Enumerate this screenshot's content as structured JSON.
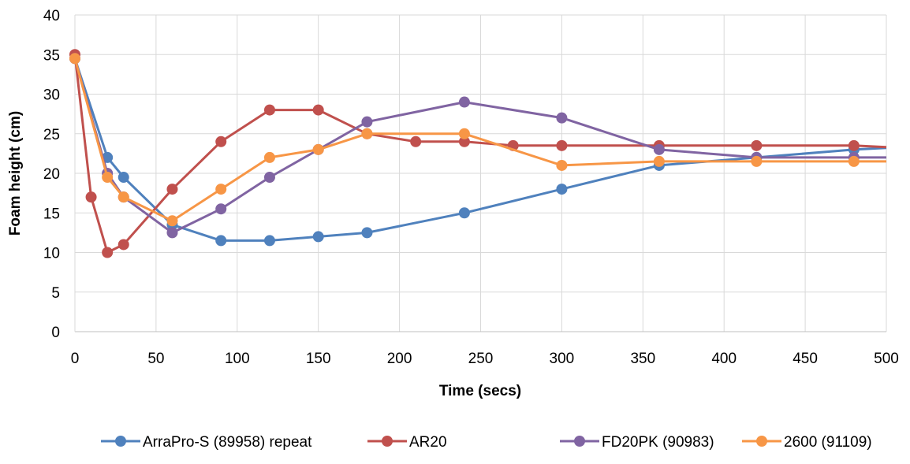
{
  "chart_data": {
    "type": "line",
    "title": "",
    "xlabel": "Time (secs)",
    "ylabel": "Foam height (cm)",
    "xlim": [
      0,
      500
    ],
    "ylim": [
      0,
      40
    ],
    "xticks": [
      0,
      50,
      100,
      150,
      200,
      250,
      300,
      350,
      400,
      450,
      500
    ],
    "yticks": [
      0,
      5,
      10,
      15,
      20,
      25,
      30,
      35,
      40
    ],
    "grid": true,
    "legend": "bottom",
    "series": [
      {
        "name": "ArraPro-S (89958) repeat",
        "color": "#4f81bd",
        "points": [
          [
            0,
            34.5
          ],
          [
            20,
            22
          ],
          [
            30,
            19.5
          ],
          [
            60,
            13.5
          ],
          [
            90,
            11.5
          ],
          [
            120,
            11.5
          ],
          [
            150,
            12
          ],
          [
            180,
            12.5
          ],
          [
            240,
            15
          ],
          [
            300,
            18
          ],
          [
            360,
            21
          ],
          [
            420,
            22
          ],
          [
            480,
            23
          ],
          [
            500,
            23.2
          ]
        ]
      },
      {
        "name": "AR20",
        "color": "#c0504d",
        "points": [
          [
            0,
            35
          ],
          [
            10,
            17
          ],
          [
            20,
            10
          ],
          [
            30,
            11
          ],
          [
            60,
            18
          ],
          [
            90,
            24
          ],
          [
            120,
            28
          ],
          [
            150,
            28
          ],
          [
            180,
            25
          ],
          [
            210,
            24
          ],
          [
            240,
            24
          ],
          [
            270,
            23.5
          ],
          [
            300,
            23.5
          ],
          [
            360,
            23.5
          ],
          [
            420,
            23.5
          ],
          [
            480,
            23.5
          ],
          [
            500,
            23.3
          ]
        ]
      },
      {
        "name": "FD20PK (90983)",
        "color": "#8064a2",
        "points": [
          [
            0,
            34.5
          ],
          [
            20,
            20
          ],
          [
            30,
            17
          ],
          [
            60,
            12.5
          ],
          [
            90,
            15.5
          ],
          [
            120,
            19.5
          ],
          [
            150,
            23
          ],
          [
            180,
            26.5
          ],
          [
            240,
            29
          ],
          [
            300,
            27
          ],
          [
            360,
            23
          ],
          [
            420,
            22
          ],
          [
            480,
            22
          ],
          [
            500,
            22
          ]
        ]
      },
      {
        "name": "2600 (91109)",
        "color": "#f79646",
        "points": [
          [
            0,
            34.5
          ],
          [
            20,
            19.5
          ],
          [
            30,
            17
          ],
          [
            60,
            14
          ],
          [
            90,
            18
          ],
          [
            120,
            22
          ],
          [
            150,
            23
          ],
          [
            180,
            25
          ],
          [
            240,
            25
          ],
          [
            300,
            21
          ],
          [
            360,
            21.5
          ],
          [
            420,
            21.5
          ],
          [
            480,
            21.5
          ],
          [
            500,
            21.5
          ]
        ]
      }
    ]
  }
}
